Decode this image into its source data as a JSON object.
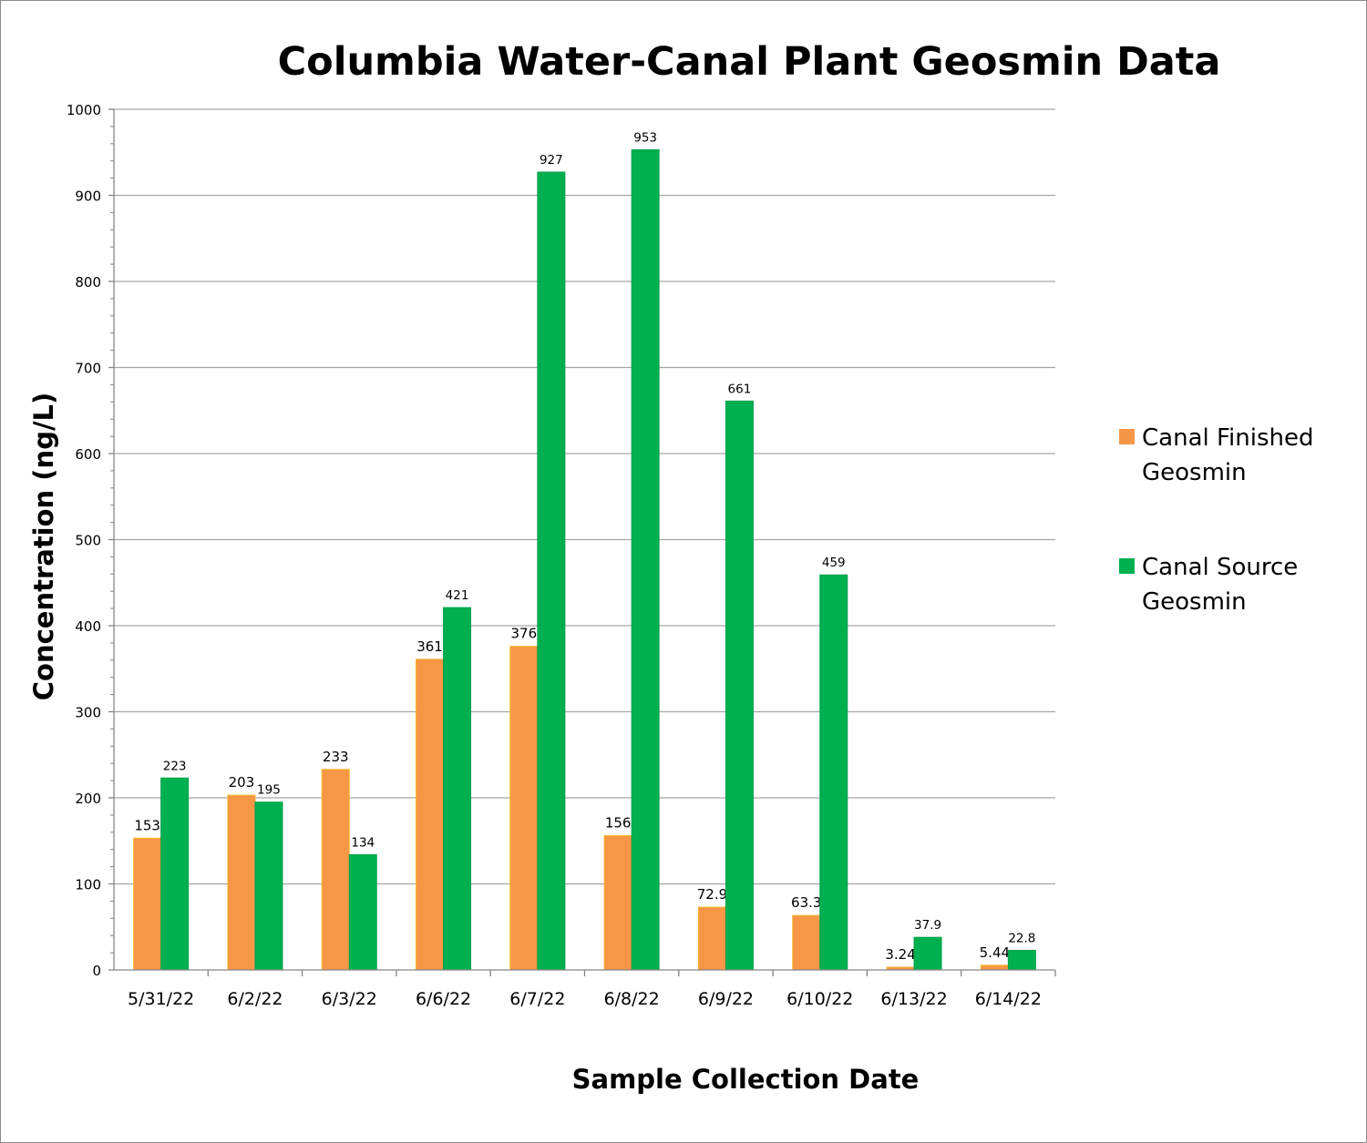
{
  "chart_data": {
    "type": "bar",
    "title": "Columbia Water-Canal Plant Geosmin Data",
    "xlabel": "Sample Collection Date",
    "ylabel": "Concentration (ng/L)",
    "ylim": [
      0,
      1000
    ],
    "yticks": [
      0,
      100,
      200,
      300,
      400,
      500,
      600,
      700,
      800,
      900,
      1000
    ],
    "grid": true,
    "legend_position": "right",
    "categories": [
      "5/31/22",
      "6/2/22",
      "6/3/22",
      "6/6/22",
      "6/7/22",
      "6/8/22",
      "6/9/22",
      "6/10/22",
      "6/13/22",
      "6/14/22"
    ],
    "series": [
      {
        "name": "Canal Finished Geosmin",
        "name_lines": [
          "Canal Finished",
          "Geosmin"
        ],
        "color": "#F79646",
        "border": "#F5B32A",
        "values": [
          153,
          203,
          233,
          361,
          376,
          156,
          72.9,
          63.3,
          3.24,
          5.44
        ],
        "labels": [
          "153",
          "203",
          "233",
          "361",
          "376",
          "156",
          "72.9",
          "63.3",
          "3.24",
          "5.44"
        ]
      },
      {
        "name": "Canal Source Geosmin",
        "name_lines": [
          "Canal Source",
          "Geosmin"
        ],
        "color": "#00B050",
        "border": "#00A04A",
        "values": [
          223,
          195,
          134,
          421,
          927,
          953,
          661,
          459,
          37.9,
          22.8
        ],
        "labels": [
          "223",
          "195",
          "134",
          "421",
          "927",
          "953",
          "661",
          "459",
          "37.9",
          "22.8"
        ]
      }
    ]
  }
}
